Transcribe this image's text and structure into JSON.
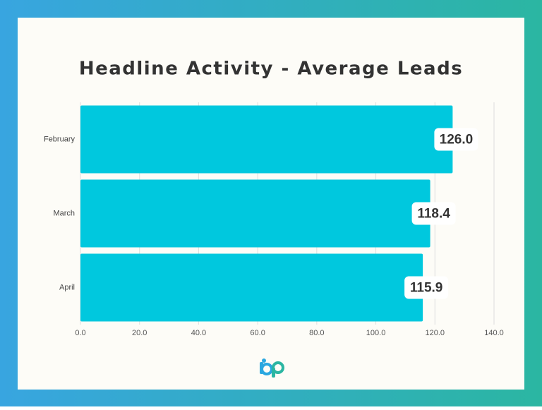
{
  "chart_data": {
    "type": "bar",
    "orientation": "horizontal",
    "title": "Headline Activity - Average Leads",
    "categories": [
      "February",
      "March",
      "April"
    ],
    "values": [
      126.0,
      118.4,
      115.9
    ],
    "value_labels": [
      "126.0",
      "118.4",
      "115.9"
    ],
    "color": "#00c8de",
    "xlim": [
      0,
      140
    ],
    "xticks": [
      {
        "value": 0,
        "label": "0.0"
      },
      {
        "value": 20,
        "label": "20.0"
      },
      {
        "value": 40,
        "label": "40.0"
      },
      {
        "value": 60,
        "label": "60.0"
      },
      {
        "value": 80,
        "label": "80.0"
      },
      {
        "value": 100,
        "label": "100.0"
      },
      {
        "value": 120,
        "label": "120.0"
      },
      {
        "value": 140,
        "label": "140.0"
      }
    ],
    "grid": true
  }
}
